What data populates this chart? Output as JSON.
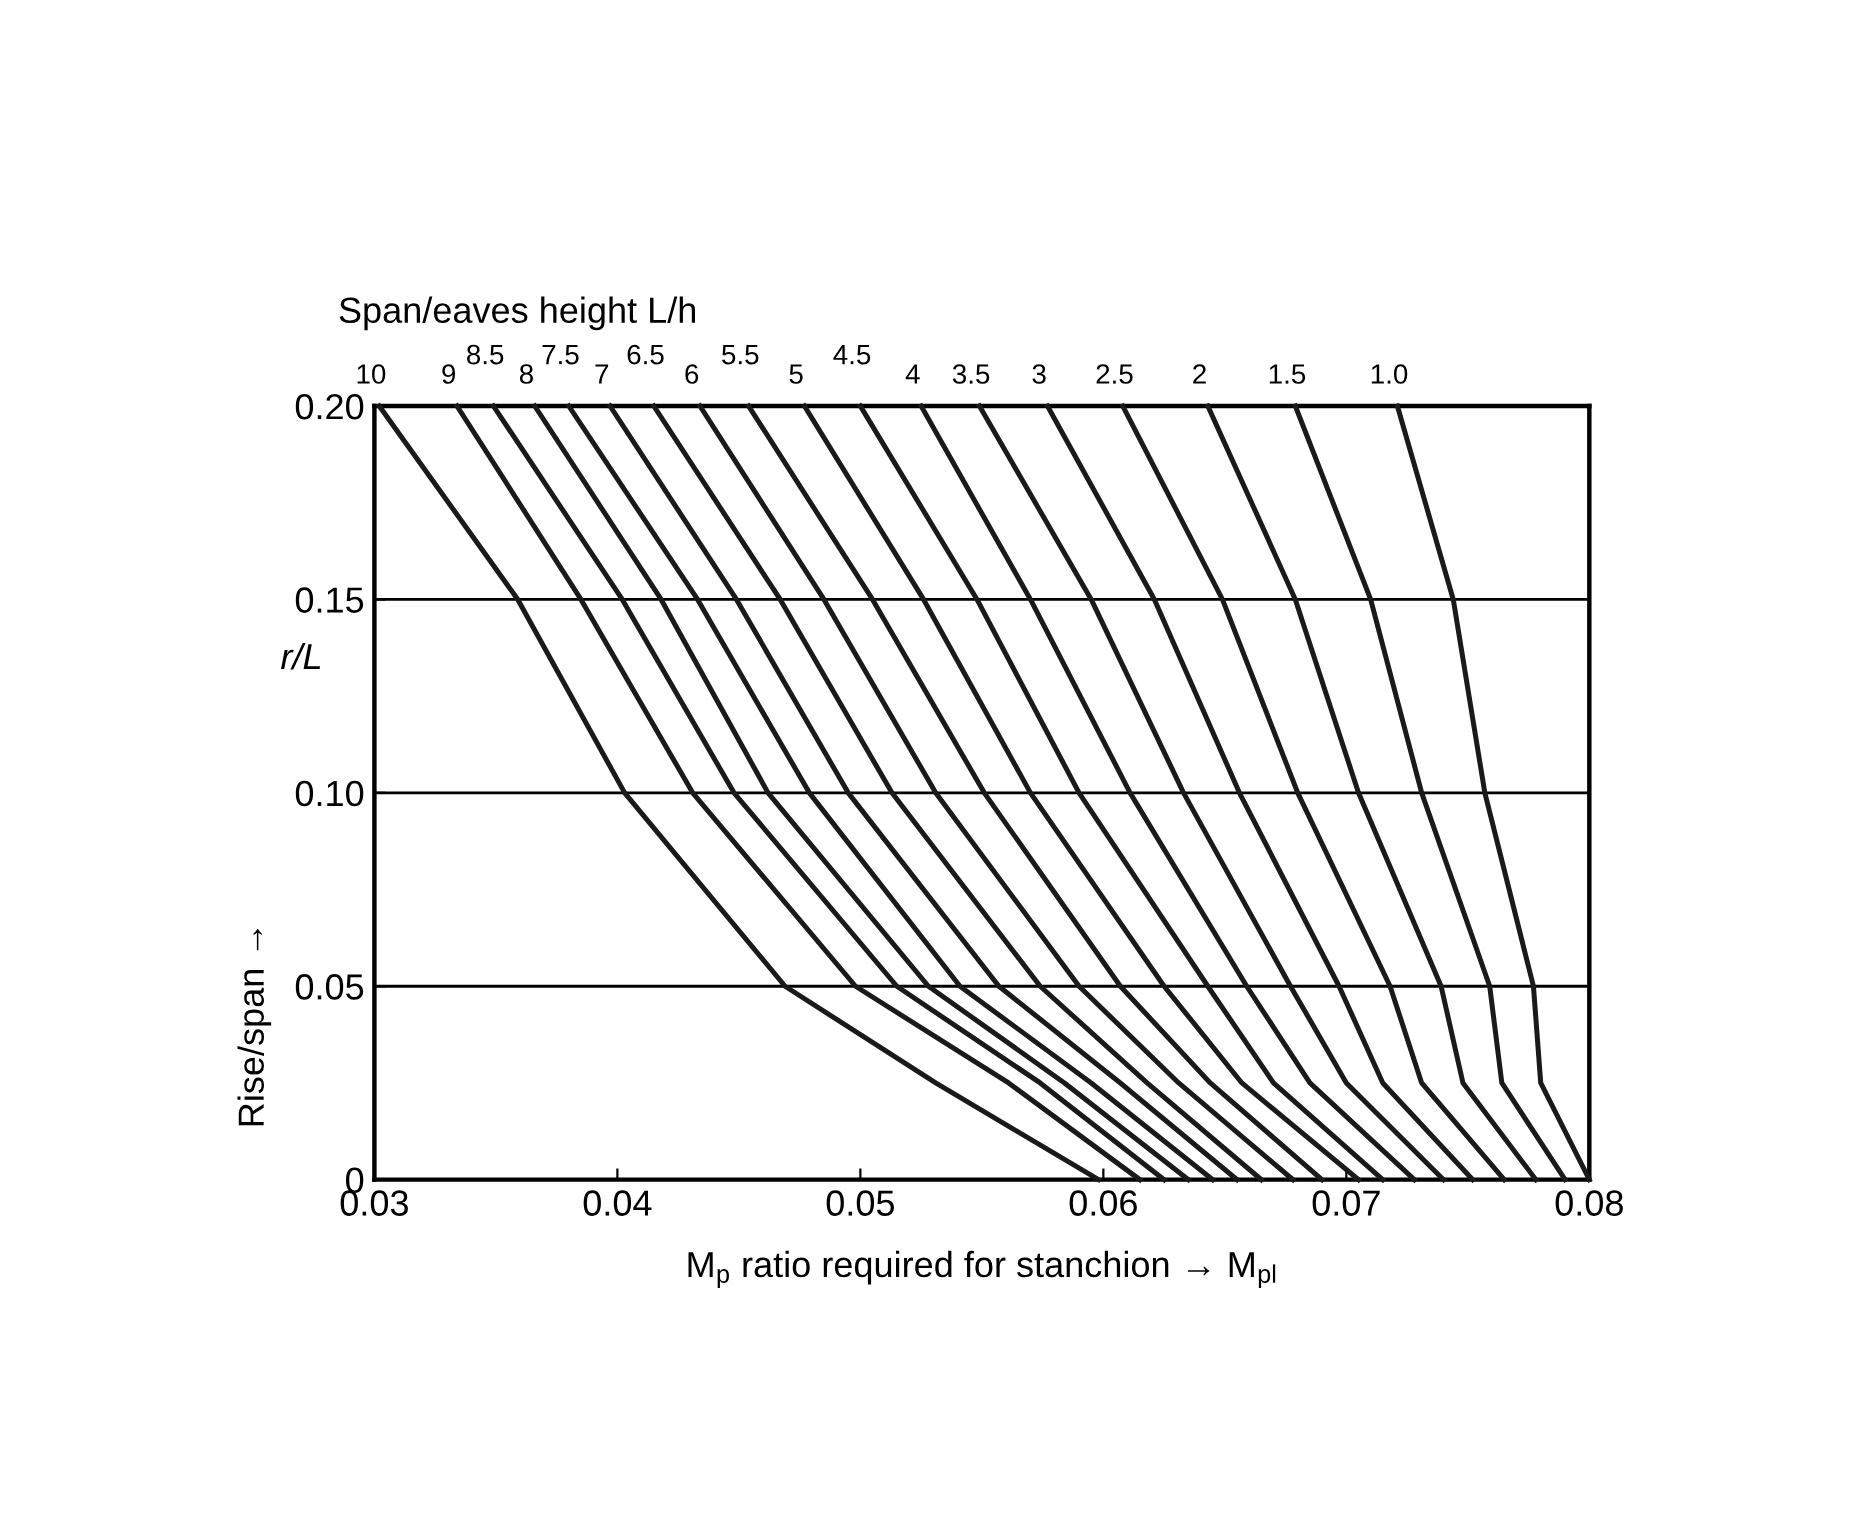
{
  "chart_data": {
    "type": "line",
    "title": "Span/eaves height L/h",
    "xlabel": "M$_{p}$ ratio required for stanchion → M$_{pl}$",
    "ylabel": "Rise/span →",
    "annotations": [
      "r/L"
    ],
    "xlim": [
      0.03,
      0.08
    ],
    "ylim": [
      0,
      0.2
    ],
    "xticks": [
      0.03,
      0.04,
      0.05,
      0.06,
      0.07,
      0.08
    ],
    "yticks": [
      0,
      {
        "value": 0.05,
        "label": "0.05"
      },
      {
        "value": 0.1,
        "label": "0.10"
      },
      {
        "value": 0.15,
        "label": "0.15"
      },
      {
        "value": 0.2,
        "label": "0.20"
      }
    ],
    "grid": "y",
    "marker": "none",
    "line_style": "solid",
    "series": [
      {
        "name": "10",
        "color": "#1a1a1a",
        "x": [
          0.0302,
          0.0359,
          0.0403,
          0.0469,
          0.0531,
          0.0598
        ],
        "values": [
          0.2,
          0.15,
          0.1,
          0.05,
          0.025,
          0
        ]
      },
      {
        "name": "9",
        "color": "#1a1a1a",
        "x": [
          0.0334,
          0.0385,
          0.0431,
          0.0498,
          0.0561,
          0.0615
        ],
        "values": [
          0.2,
          0.15,
          0.1,
          0.05,
          0.025,
          0
        ]
      },
      {
        "name": "8.5",
        "color": "#1a1a1a",
        "x": [
          0.0349,
          0.0402,
          0.0448,
          0.0515,
          0.0574,
          0.0625
        ],
        "values": [
          0.2,
          0.15,
          0.1,
          0.05,
          0.025,
          0
        ]
      },
      {
        "name": "8",
        "color": "#1a1a1a",
        "x": [
          0.0366,
          0.0418,
          0.0462,
          0.0528,
          0.0584,
          0.0635
        ],
        "values": [
          0.2,
          0.15,
          0.1,
          0.05,
          0.025,
          0
        ]
      },
      {
        "name": "7.5",
        "color": "#1a1a1a",
        "x": [
          0.038,
          0.0433,
          0.0479,
          0.0541,
          0.0595,
          0.0645
        ],
        "values": [
          0.2,
          0.15,
          0.1,
          0.05,
          0.025,
          0
        ]
      },
      {
        "name": "7",
        "color": "#1a1a1a",
        "x": [
          0.0397,
          0.0449,
          0.0495,
          0.0557,
          0.0607,
          0.0655
        ],
        "values": [
          0.2,
          0.15,
          0.1,
          0.05,
          0.025,
          0
        ]
      },
      {
        "name": "6.5",
        "color": "#1a1a1a",
        "x": [
          0.0415,
          0.0467,
          0.0513,
          0.0574,
          0.0618,
          0.0665
        ],
        "values": [
          0.2,
          0.15,
          0.1,
          0.05,
          0.025,
          0
        ]
      },
      {
        "name": "6",
        "color": "#1a1a1a",
        "x": [
          0.0434,
          0.0485,
          0.0531,
          0.059,
          0.0631,
          0.0678
        ],
        "values": [
          0.2,
          0.15,
          0.1,
          0.05,
          0.025,
          0
        ]
      },
      {
        "name": "5.5",
        "color": "#1a1a1a",
        "x": [
          0.0454,
          0.0505,
          0.0551,
          0.0607,
          0.0644,
          0.069
        ],
        "values": [
          0.2,
          0.15,
          0.1,
          0.05,
          0.025,
          0
        ]
      },
      {
        "name": "5",
        "color": "#1a1a1a",
        "x": [
          0.0477,
          0.0526,
          0.057,
          0.0625,
          0.0657,
          0.0705
        ],
        "values": [
          0.2,
          0.15,
          0.1,
          0.05,
          0.025,
          0
        ]
      },
      {
        "name": "4.5",
        "color": "#1a1a1a",
        "x": [
          0.05,
          0.0548,
          0.059,
          0.0643,
          0.067,
          0.0715
        ],
        "values": [
          0.2,
          0.15,
          0.1,
          0.05,
          0.025,
          0
        ]
      },
      {
        "name": "4",
        "color": "#1a1a1a",
        "x": [
          0.0525,
          0.057,
          0.0611,
          0.0659,
          0.0685,
          0.0728
        ],
        "values": [
          0.2,
          0.15,
          0.1,
          0.05,
          0.025,
          0
        ]
      },
      {
        "name": "3.5",
        "color": "#1a1a1a",
        "x": [
          0.0549,
          0.0595,
          0.0633,
          0.0677,
          0.07,
          0.074
        ],
        "values": [
          0.2,
          0.15,
          0.1,
          0.05,
          0.025,
          0
        ]
      },
      {
        "name": "3",
        "color": "#1a1a1a",
        "x": [
          0.0577,
          0.0621,
          0.0656,
          0.0697,
          0.0715,
          0.0752
        ],
        "values": [
          0.2,
          0.15,
          0.1,
          0.05,
          0.025,
          0
        ]
      },
      {
        "name": "2.5",
        "color": "#1a1a1a",
        "x": [
          0.0608,
          0.0649,
          0.068,
          0.0718,
          0.0731,
          0.0765
        ],
        "values": [
          0.2,
          0.15,
          0.1,
          0.05,
          0.025,
          0
        ]
      },
      {
        "name": "2",
        "color": "#1a1a1a",
        "x": [
          0.0643,
          0.0679,
          0.0705,
          0.0739,
          0.0748,
          0.0778
        ],
        "values": [
          0.2,
          0.15,
          0.1,
          0.05,
          0.025,
          0
        ]
      },
      {
        "name": "1.5",
        "color": "#1a1a1a",
        "x": [
          0.0679,
          0.071,
          0.0731,
          0.0759,
          0.0764,
          0.079
        ],
        "values": [
          0.2,
          0.15,
          0.1,
          0.05,
          0.025,
          0
        ]
      },
      {
        "name": "1.0",
        "color": "#1a1a1a",
        "x": [
          0.0721,
          0.0744,
          0.0757,
          0.0777,
          0.078,
          0.08
        ],
        "values": [
          0.2,
          0.15,
          0.1,
          0.05,
          0.025,
          0
        ]
      }
    ]
  }
}
